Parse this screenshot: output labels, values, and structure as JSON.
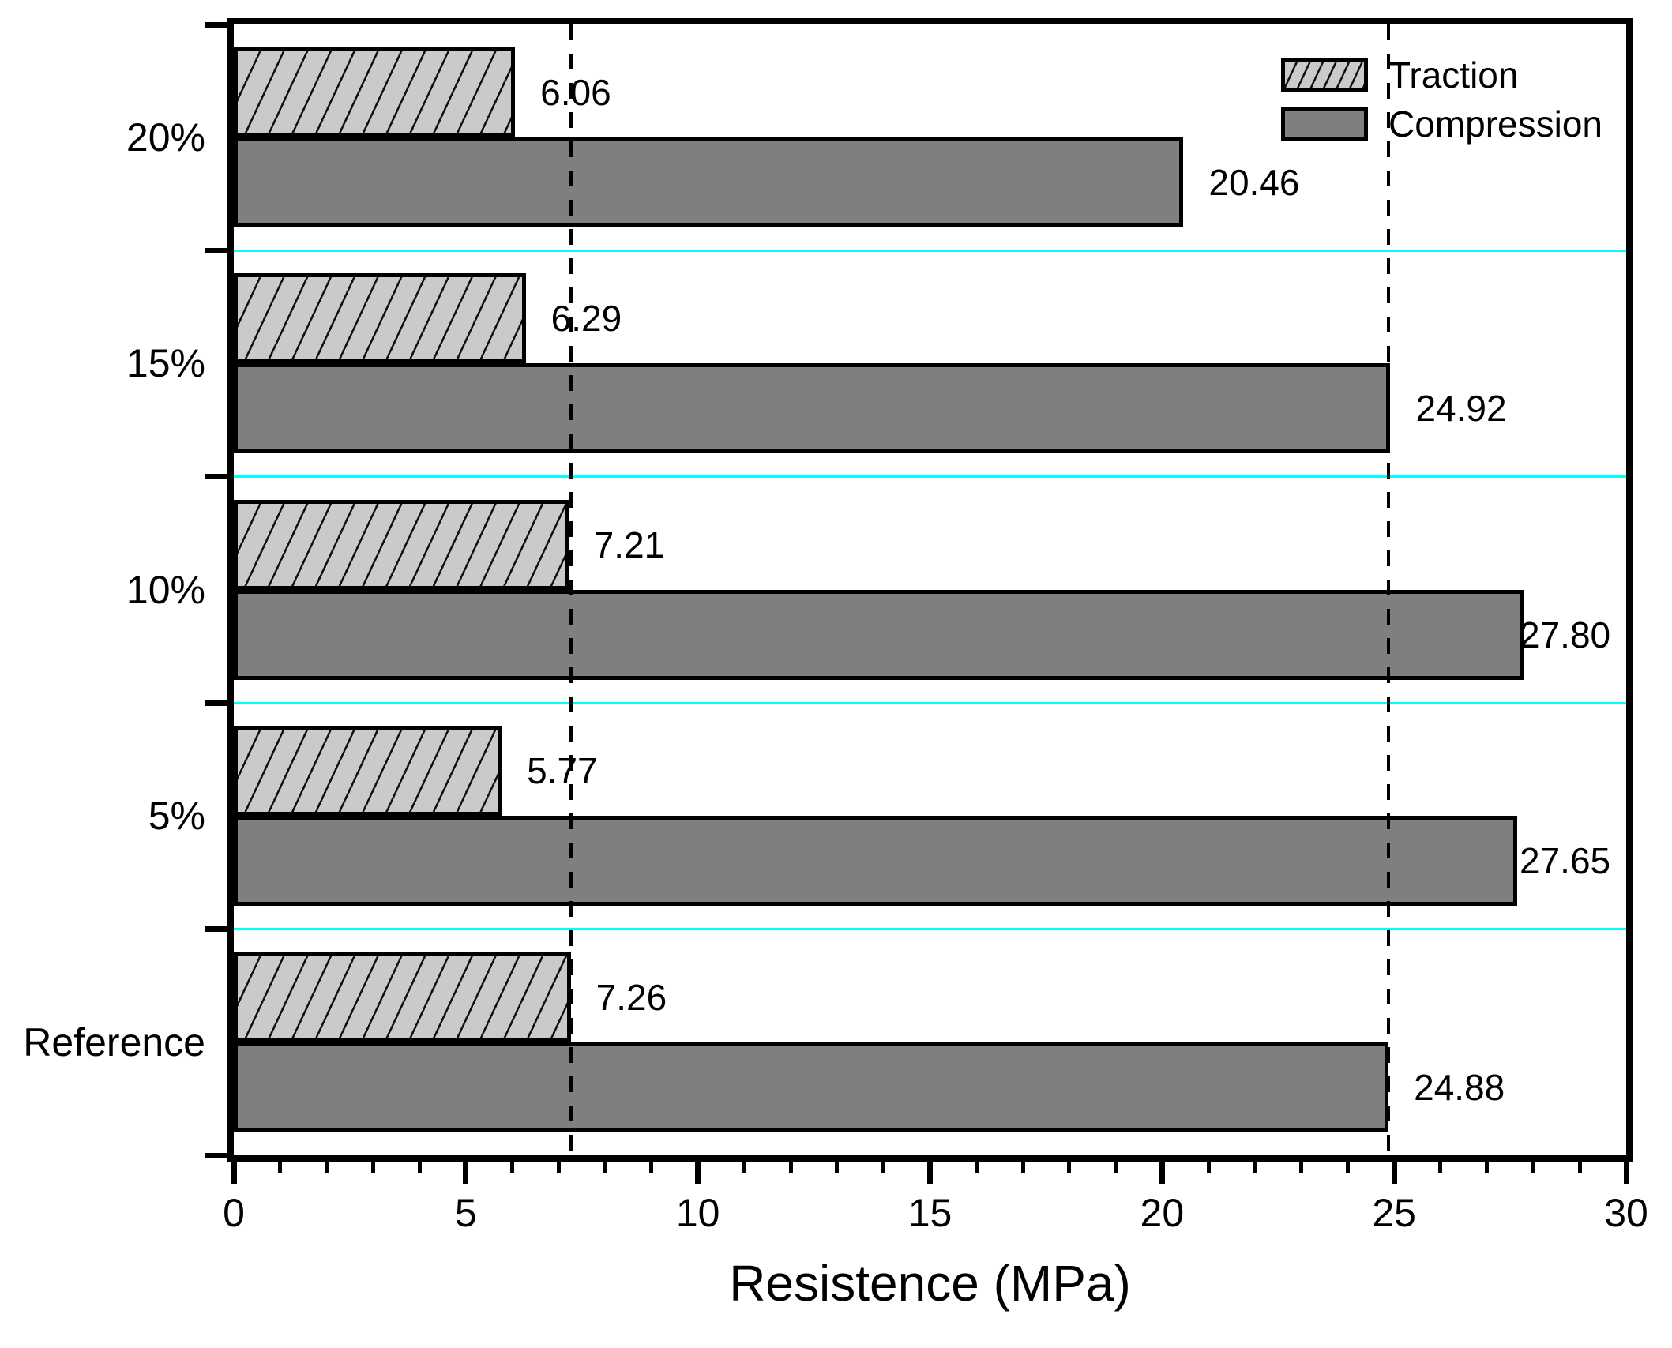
{
  "chart_data": {
    "type": "bar",
    "orientation": "horizontal",
    "xlabel": "Resistence (MPa)",
    "xlim": [
      0,
      30
    ],
    "x_major_ticks": [
      0,
      5,
      10,
      15,
      20,
      25,
      30
    ],
    "x_minor_step": 1,
    "grid": "off",
    "categories": [
      "20%",
      "15%",
      "10%",
      "5%",
      "Reference"
    ],
    "series": [
      {
        "name": "Traction",
        "values": [
          6.06,
          6.29,
          7.21,
          5.77,
          7.26
        ],
        "labels": [
          "6.06",
          "6.29",
          "7.21",
          "5.77",
          "7.26"
        ],
        "fill": "#cacaca",
        "pattern": "diagonal-hatch"
      },
      {
        "name": "Compression",
        "values": [
          20.46,
          24.92,
          27.8,
          27.65,
          24.88
        ],
        "labels": [
          "20.46",
          "24.92",
          "27.80",
          "27.65",
          "24.88"
        ],
        "fill": "#7f7f7f",
        "pattern": "solid"
      }
    ],
    "reference_lines": {
      "values": [
        7.26,
        24.88
      ],
      "style": "dashed",
      "color": "#000000"
    },
    "separators": {
      "color": "#00ffff"
    },
    "legend": {
      "position": "top-right",
      "entries": [
        "Traction",
        "Compression"
      ]
    },
    "axis_color": "#000000",
    "background": "#ffffff"
  }
}
